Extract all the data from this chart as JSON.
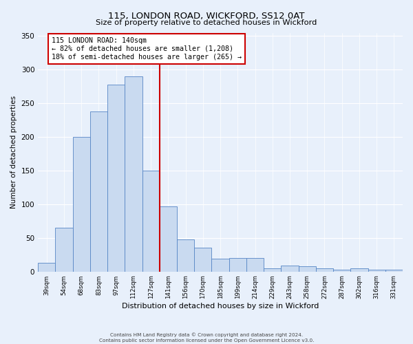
{
  "title": "115, LONDON ROAD, WICKFORD, SS12 0AT",
  "subtitle": "Size of property relative to detached houses in Wickford",
  "xlabel": "Distribution of detached houses by size in Wickford",
  "ylabel": "Number of detached properties",
  "bar_labels": [
    "39sqm",
    "54sqm",
    "68sqm",
    "83sqm",
    "97sqm",
    "112sqm",
    "127sqm",
    "141sqm",
    "156sqm",
    "170sqm",
    "185sqm",
    "199sqm",
    "214sqm",
    "229sqm",
    "243sqm",
    "258sqm",
    "272sqm",
    "287sqm",
    "302sqm",
    "316sqm",
    "331sqm"
  ],
  "bar_values": [
    13,
    65,
    200,
    238,
    278,
    290,
    150,
    97,
    48,
    35,
    19,
    20,
    20,
    5,
    9,
    8,
    5,
    3,
    5,
    3,
    3
  ],
  "bar_color": "#c9daf0",
  "bar_edge_color": "#5585c5",
  "vline_x_index": 7,
  "vline_color": "#cc0000",
  "annotation_title": "115 LONDON ROAD: 140sqm",
  "annotation_line1": "← 82% of detached houses are smaller (1,208)",
  "annotation_line2": "18% of semi-detached houses are larger (265) →",
  "annotation_box_color": "#cc0000",
  "ylim": [
    0,
    355
  ],
  "yticks": [
    0,
    50,
    100,
    150,
    200,
    250,
    300,
    350
  ],
  "footer1": "Contains HM Land Registry data © Crown copyright and database right 2024.",
  "footer2": "Contains public sector information licensed under the Open Government Licence v3.0.",
  "bg_color": "#e8f0fb",
  "plot_bg_color": "#e8f0fb",
  "grid_color": "#ffffff",
  "title_fontsize": 9.5,
  "subtitle_fontsize": 8.5
}
